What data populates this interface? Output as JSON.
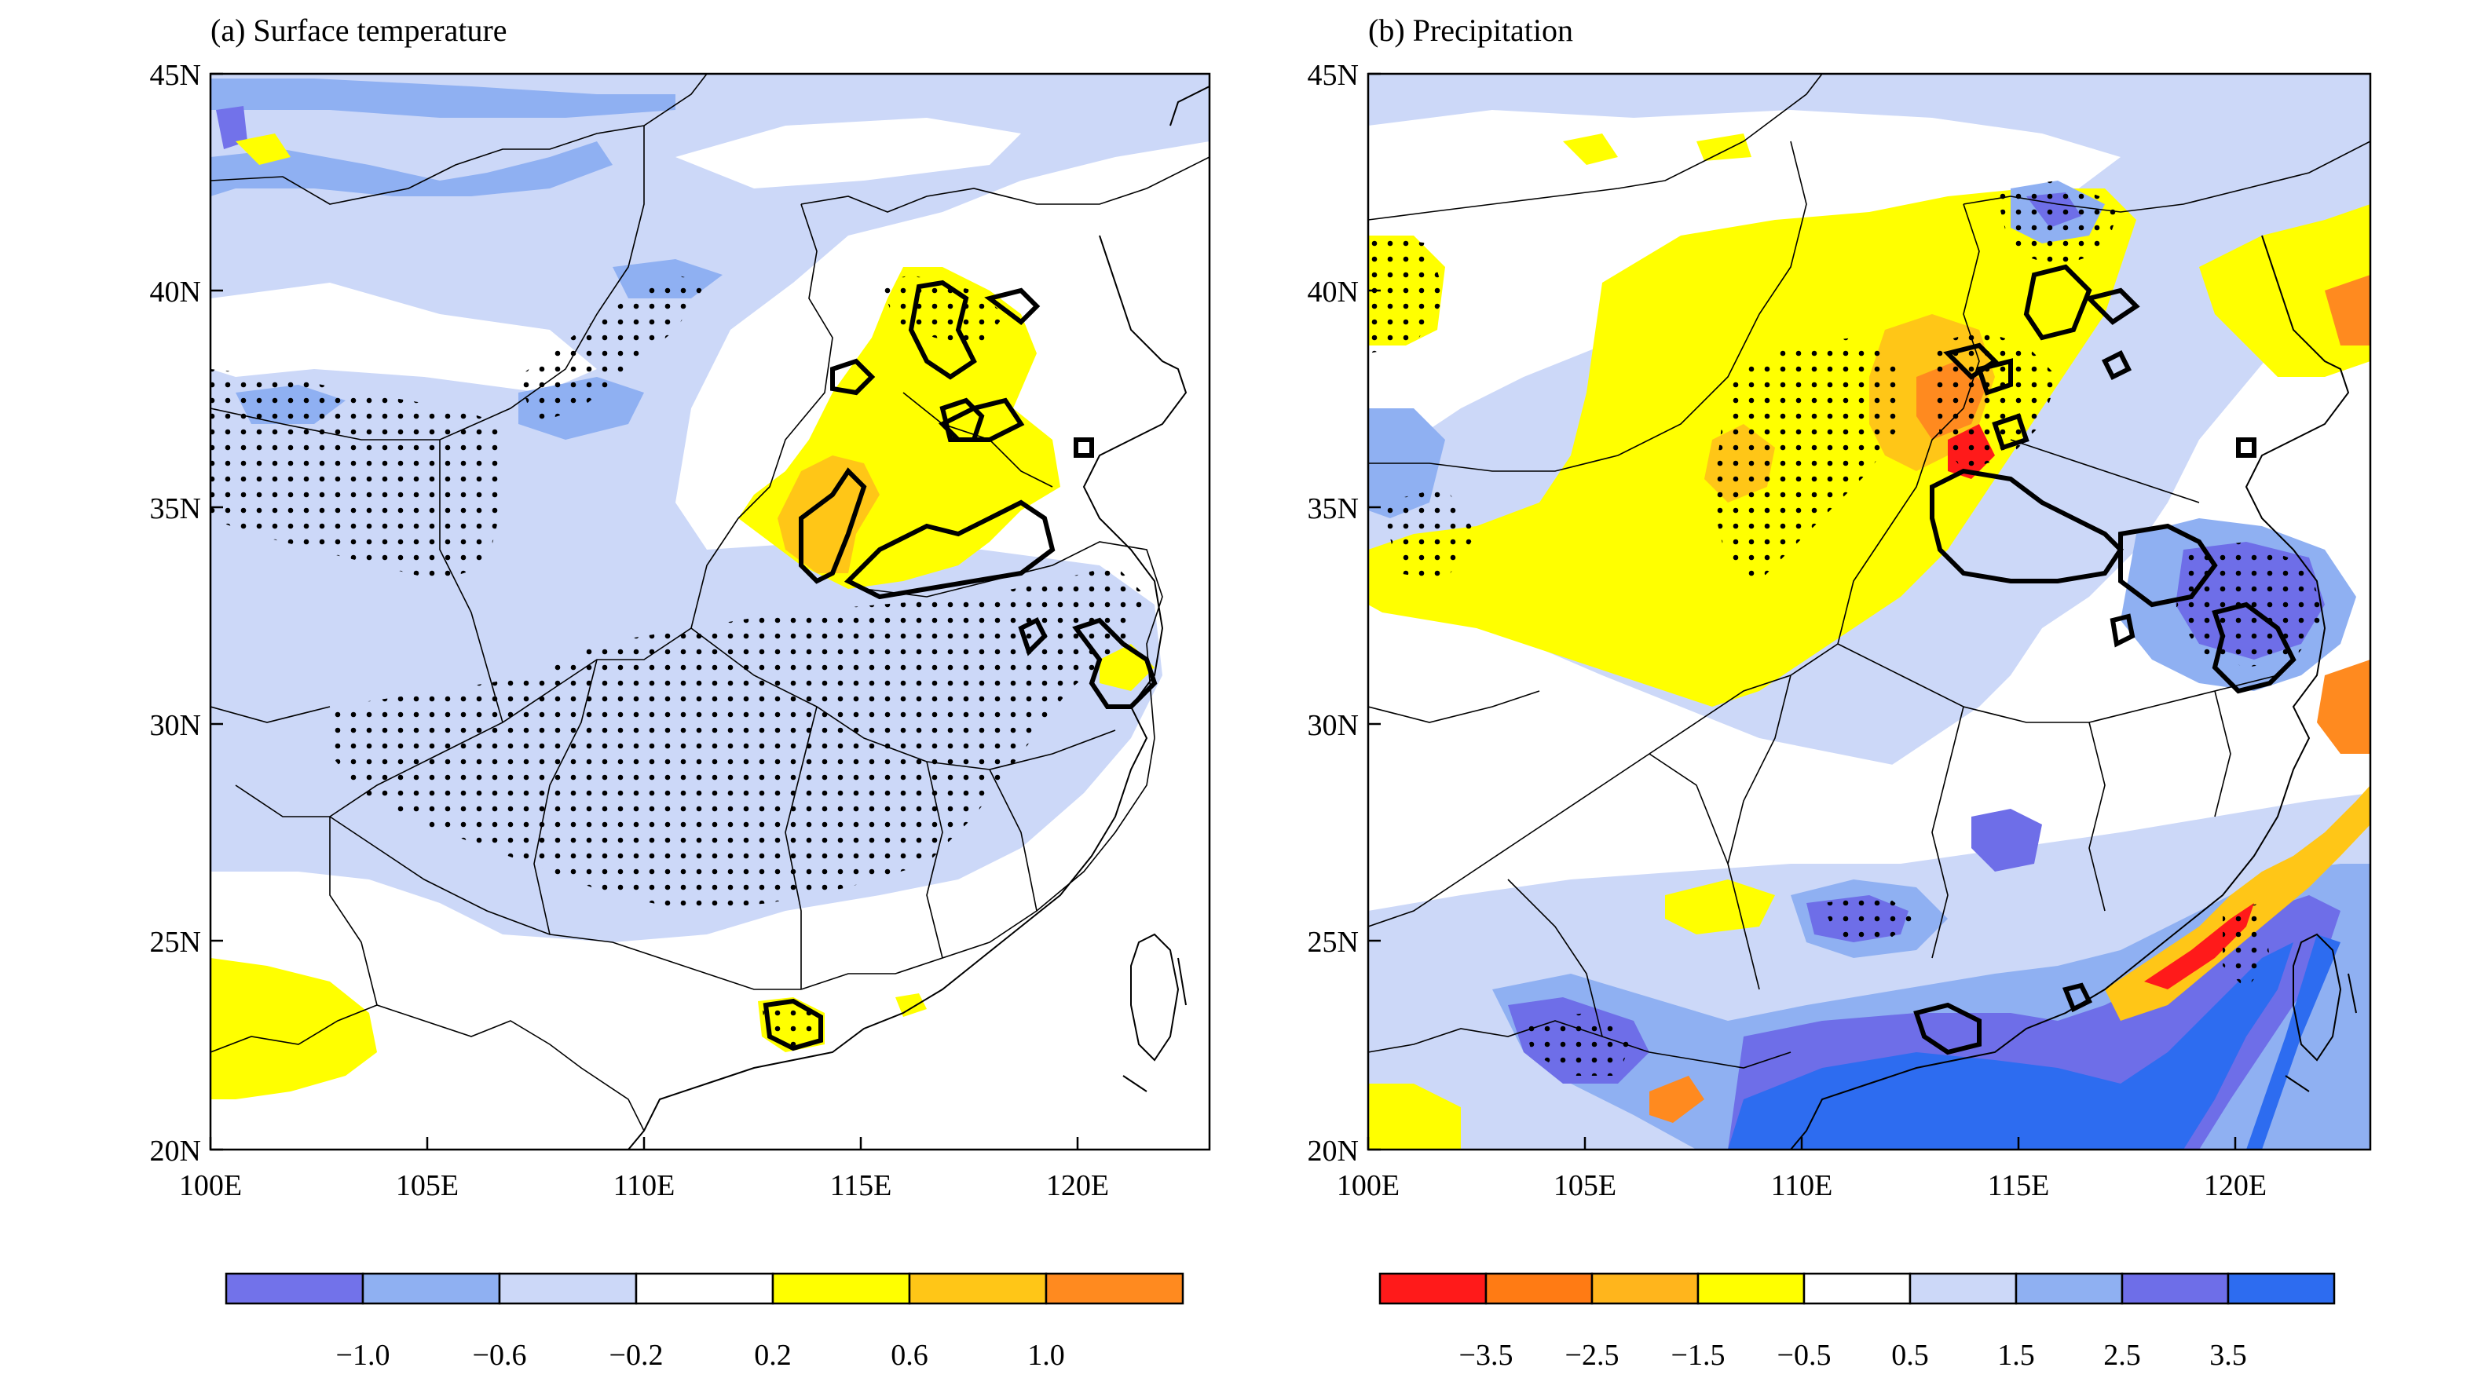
{
  "panels": [
    {
      "id": "a",
      "title": "(a) Surface temperature",
      "y_ticks": [
        "45N",
        "40N",
        "35N",
        "30N",
        "25N",
        "20N"
      ],
      "x_ticks": [
        "100E",
        "105E",
        "110E",
        "115E",
        "120E"
      ],
      "colorbar": {
        "colors": [
          "#7272ea",
          "#8fb0f2",
          "#ccd8f8",
          "#ffffff",
          "#ffff00",
          "#ffc617",
          "#ff8a1f"
        ],
        "labels": [
          "−1.0",
          "−0.6",
          "−0.2",
          "0.2",
          "0.6",
          "1.0"
        ]
      }
    },
    {
      "id": "b",
      "title": "(b) Precipitation",
      "y_ticks": [
        "45N",
        "40N",
        "35N",
        "30N",
        "25N",
        "20N"
      ],
      "x_ticks": [
        "100E",
        "105E",
        "110E",
        "115E",
        "120E"
      ],
      "colorbar": {
        "colors": [
          "#ff1a1a",
          "#ff7b14",
          "#ffb51c",
          "#ffff00",
          "#ffffff",
          "#ccd8f8",
          "#8fb0f2",
          "#6e6ee8",
          "#2d6cf0"
        ],
        "labels": [
          "−3.5",
          "−2.5",
          "−1.5",
          "−0.5",
          "0.5",
          "1.5",
          "2.5",
          "3.5"
        ]
      }
    }
  ],
  "colors": {
    "frame": "#000000",
    "light_blue": "#ccd8f8",
    "mid_blue": "#8fb0f2",
    "dark_blue": "#6e6ee8",
    "deep_blue": "#2d6cf0",
    "yellow": "#ffff00",
    "gold": "#ffc617",
    "orange": "#ff8a1f",
    "red": "#ff1a1a"
  }
}
